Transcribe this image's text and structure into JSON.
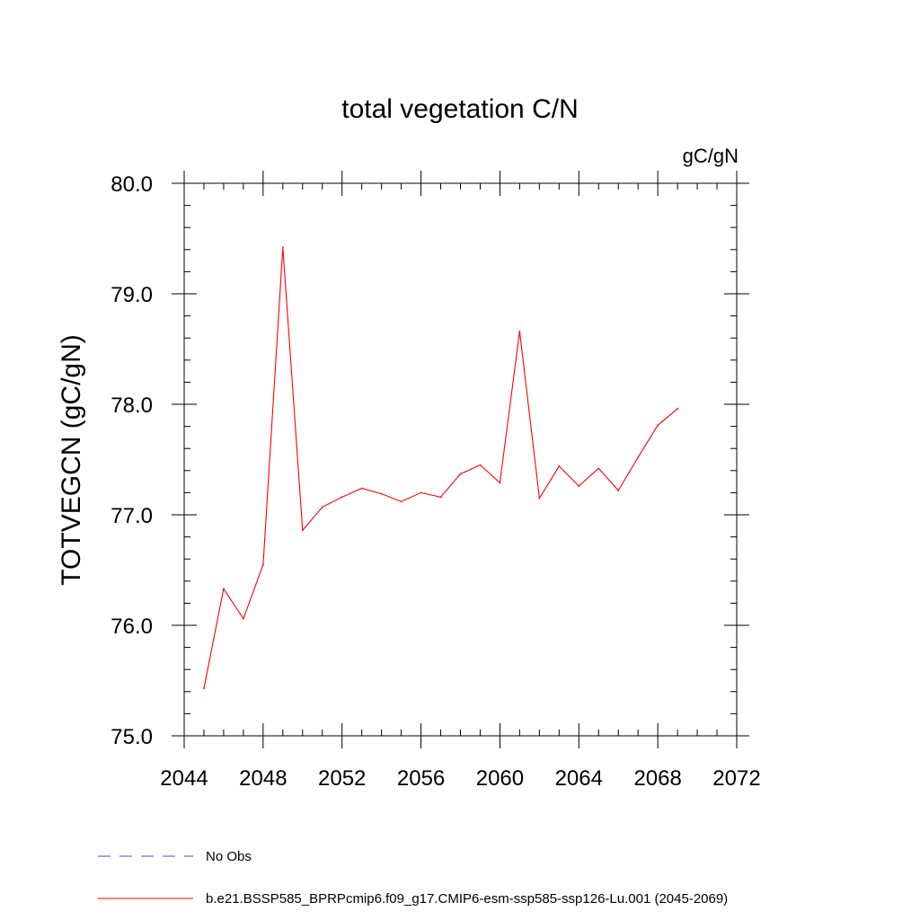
{
  "chart_data": {
    "type": "line",
    "title": "total vegetation C/N",
    "units_label": "gC/gN",
    "ylabel": "TOTVEGCN  (gC/gN)",
    "xlabel": "",
    "xlim": [
      2044,
      2072
    ],
    "ylim": [
      75.0,
      80.0
    ],
    "x_ticks": [
      2044,
      2048,
      2052,
      2056,
      2060,
      2064,
      2068,
      2072
    ],
    "x_tick_labels": [
      "2044",
      "2048",
      "2052",
      "2056",
      "2060",
      "2064",
      "2068",
      "2072"
    ],
    "y_ticks": [
      75.0,
      76.0,
      77.0,
      78.0,
      79.0,
      80.0
    ],
    "y_tick_labels": [
      "75.0",
      "76.0",
      "77.0",
      "78.0",
      "79.0",
      "80.0"
    ],
    "x_minor_step": 1,
    "y_minor_step": 0.2,
    "series": [
      {
        "name": "b.e21.BSSP585_BPRPcmip6.f09_g17.CMIP6-esm-ssp585-ssp126-Lu.001 (2045-2069)",
        "color": "#ff0000",
        "x": [
          2045,
          2046,
          2047,
          2048,
          2049,
          2050,
          2051,
          2052,
          2053,
          2054,
          2055,
          2056,
          2057,
          2058,
          2059,
          2060,
          2061,
          2062,
          2063,
          2064,
          2065,
          2066,
          2067,
          2068,
          2069
        ],
        "y": [
          75.43,
          76.33,
          76.06,
          76.55,
          79.42,
          76.86,
          77.07,
          77.16,
          77.24,
          77.19,
          77.12,
          77.2,
          77.16,
          77.37,
          77.45,
          77.29,
          78.66,
          77.15,
          77.44,
          77.26,
          77.42,
          77.22,
          77.52,
          77.81,
          77.96
        ]
      }
    ],
    "legend": {
      "placement": "bottom-left",
      "entries": [
        {
          "label": "No Obs",
          "style": "dashed",
          "color": "#5a4aa8"
        },
        {
          "label": "b.e21.BSSP585_BPRPcmip6.f09_g17.CMIP6-esm-ssp585-ssp126-Lu.001 (2045-2069)",
          "style": "solid",
          "color": "#ff0000"
        }
      ]
    }
  }
}
